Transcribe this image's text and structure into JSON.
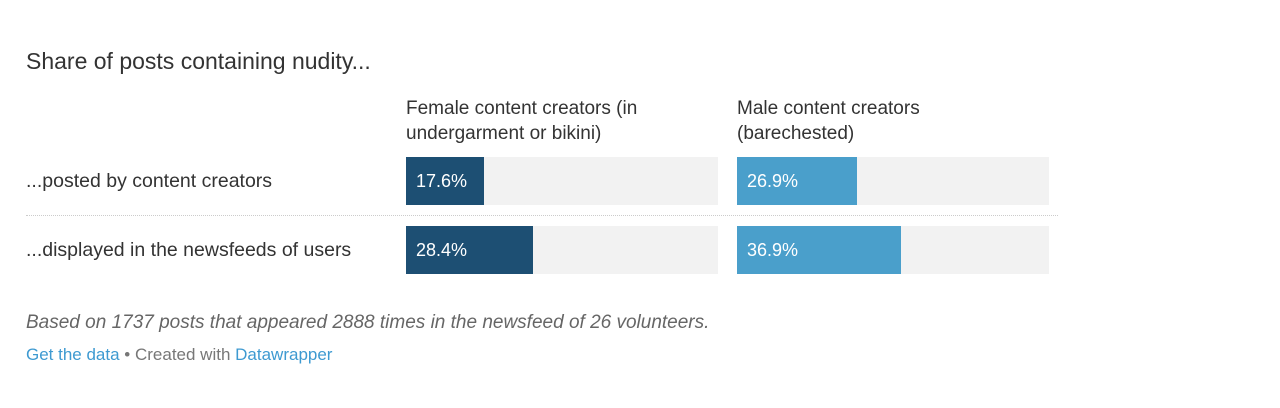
{
  "colors": {
    "female": "#1d4f73",
    "male": "#4a9fcb",
    "track": "#f2f2f2",
    "link": "#3e9ad1"
  },
  "chart_data": {
    "type": "bar",
    "title": "Share of posts containing nudity...",
    "categories": [
      "...posted by content creators",
      "...displayed in the newsfeeds of users"
    ],
    "series": [
      {
        "name": "Female content creators (in undergarment or bikini)",
        "values": [
          17.6,
          28.4
        ],
        "labels": [
          "17.6%",
          "28.4%"
        ]
      },
      {
        "name": "Male content creators (barechested)",
        "values": [
          26.9,
          36.9
        ],
        "labels": [
          "26.9%",
          "36.9%"
        ]
      }
    ],
    "xlim": [
      0,
      70
    ],
    "grid": false,
    "legend": "column headers"
  },
  "headers": {
    "female_line1": "Female content creators (in",
    "female_line2": "undergarment or bikini)",
    "male_line1": "Male content creators",
    "male_line2": "(barechested)"
  },
  "notes": "Based on 1737 posts that appeared 2888 times in the newsfeed of 26 volunteers.",
  "footer": {
    "get_data": "Get the data",
    "separator": " • Created with ",
    "datawrapper": "Datawrapper"
  }
}
